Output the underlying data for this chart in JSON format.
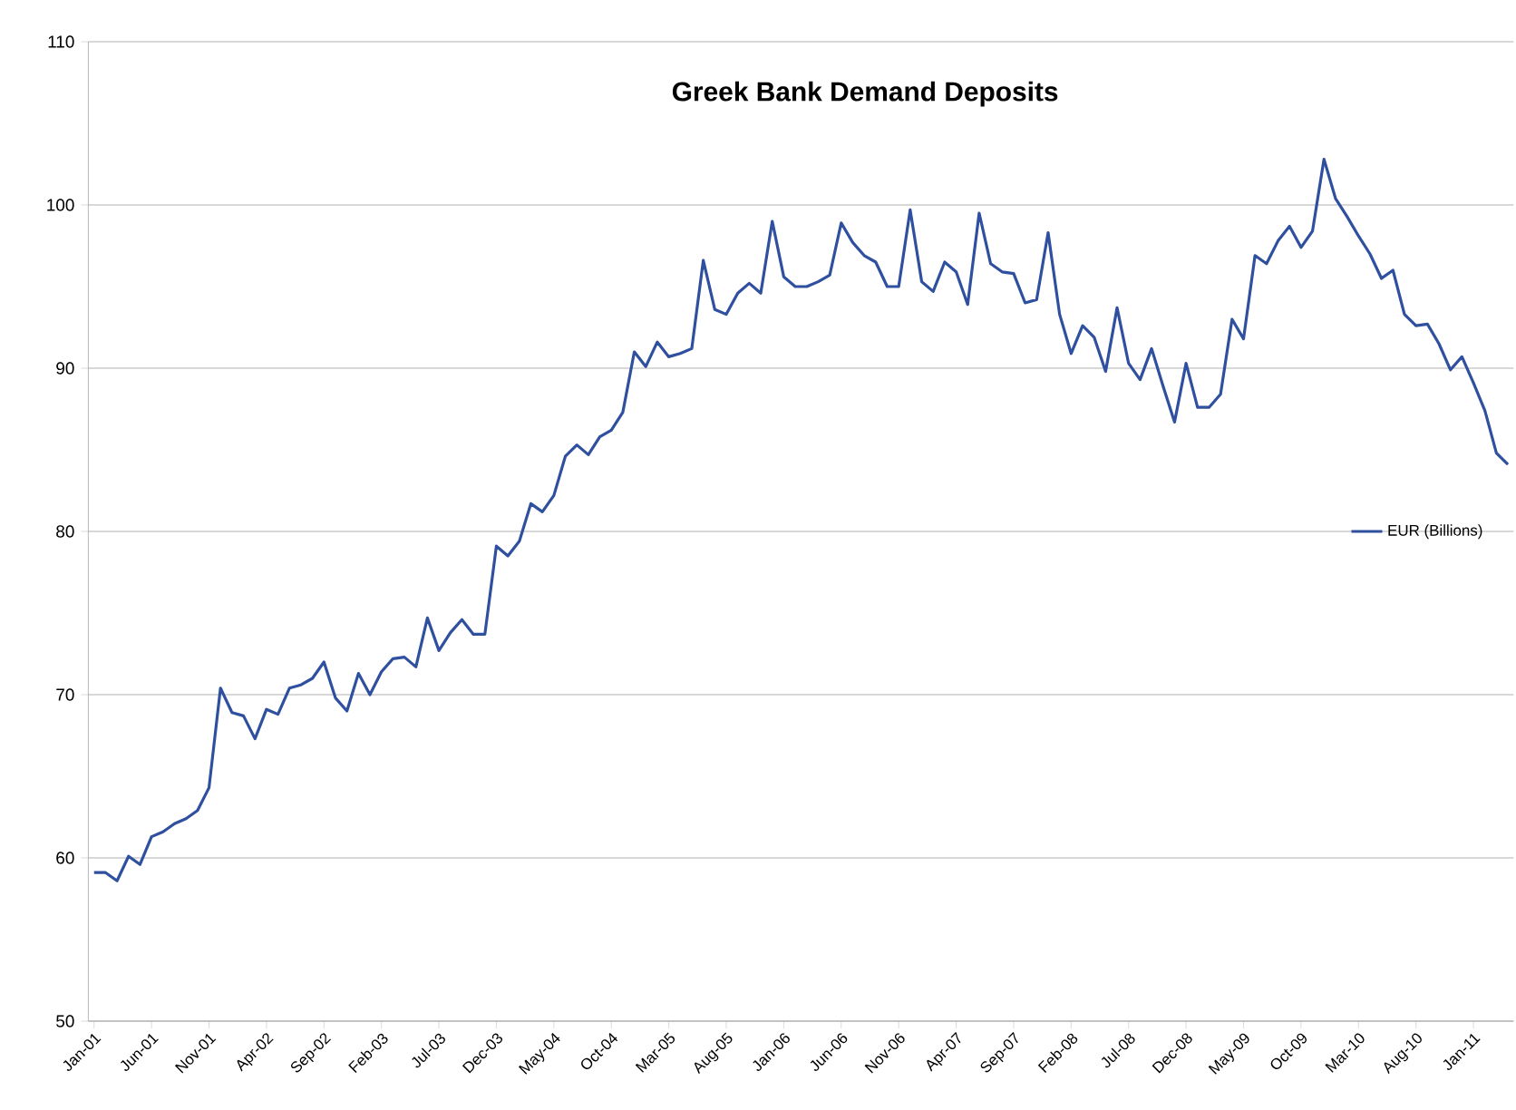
{
  "chart_data": {
    "type": "line",
    "title": "Greek Bank Demand Deposits",
    "categories": [
      "Jan-01",
      null,
      null,
      null,
      null,
      "Jun-01",
      null,
      null,
      null,
      null,
      "Nov-01",
      null,
      null,
      null,
      null,
      "Apr-02",
      null,
      null,
      null,
      null,
      "Sep-02",
      null,
      null,
      null,
      null,
      "Feb-03",
      null,
      null,
      null,
      null,
      "Jul-03",
      null,
      null,
      null,
      null,
      "Dec-03",
      null,
      null,
      null,
      null,
      "May-04",
      null,
      null,
      null,
      null,
      "Oct-04",
      null,
      null,
      null,
      null,
      "Mar-05",
      null,
      null,
      null,
      null,
      "Aug-05",
      null,
      null,
      null,
      null,
      "Jan-06",
      null,
      null,
      null,
      null,
      "Jun-06",
      null,
      null,
      null,
      null,
      "Nov-06",
      null,
      null,
      null,
      null,
      "Apr-07",
      null,
      null,
      null,
      null,
      "Sep-07",
      null,
      null,
      null,
      null,
      "Feb-08",
      null,
      null,
      null,
      null,
      "Jul-08",
      null,
      null,
      null,
      null,
      "Dec-08",
      null,
      null,
      null,
      null,
      "May-09",
      null,
      null,
      null,
      null,
      "Oct-09",
      null,
      null,
      null,
      null,
      "Mar-10",
      null,
      null,
      null,
      null,
      "Aug-10",
      null,
      null,
      null,
      null,
      "Jan-11",
      null,
      null,
      null
    ],
    "series": [
      {
        "name": "EUR (Billions)",
        "color": "#2f4f9f",
        "values": [
          59.1,
          59.1,
          58.6,
          60.1,
          59.6,
          61.3,
          61.6,
          62.1,
          62.4,
          62.9,
          64.3,
          70.4,
          68.9,
          68.7,
          67.3,
          69.1,
          68.8,
          70.4,
          70.6,
          71.0,
          72.0,
          69.8,
          69.0,
          71.3,
          70.0,
          71.4,
          72.2,
          72.3,
          71.7,
          74.7,
          72.7,
          73.8,
          74.6,
          73.7,
          73.7,
          79.1,
          78.5,
          79.4,
          81.7,
          81.2,
          82.2,
          84.6,
          85.3,
          84.7,
          85.8,
          86.2,
          87.3,
          91.0,
          90.1,
          91.6,
          90.7,
          90.9,
          91.2,
          96.6,
          93.6,
          93.3,
          94.6,
          95.2,
          94.6,
          99.0,
          95.6,
          95.0,
          95.0,
          95.3,
          95.7,
          98.9,
          97.7,
          96.9,
          96.5,
          95.0,
          95.0,
          99.7,
          95.3,
          94.7,
          96.5,
          95.9,
          93.9,
          99.5,
          96.4,
          95.9,
          95.8,
          94.0,
          94.2,
          98.3,
          93.3,
          90.9,
          92.6,
          91.9,
          89.8,
          93.7,
          90.3,
          89.3,
          91.2,
          88.9,
          86.7,
          90.3,
          87.6,
          87.6,
          88.4,
          93.0,
          91.8,
          96.9,
          96.4,
          97.8,
          98.7,
          97.4,
          98.4,
          102.8,
          100.4,
          99.3,
          98.1,
          97.0,
          95.5,
          96.0,
          93.3,
          92.6,
          92.7,
          91.5,
          89.9,
          90.7,
          89.1,
          87.4,
          84.8,
          84.1
        ]
      }
    ],
    "ylim": [
      50,
      110
    ],
    "yticks": [
      50,
      60,
      70,
      80,
      90,
      100,
      110
    ],
    "grid": "y",
    "legend": "right",
    "marker": "none",
    "line_style": "solid"
  }
}
